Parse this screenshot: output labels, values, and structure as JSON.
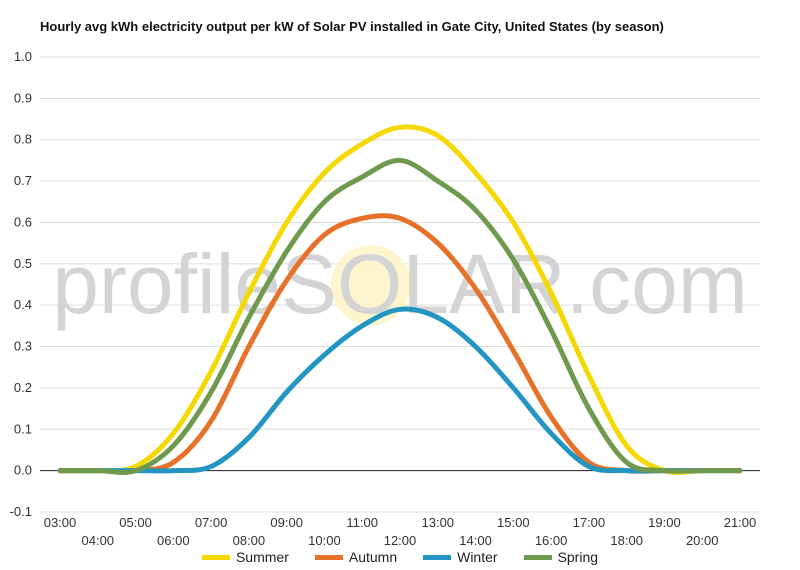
{
  "chart_data": {
    "type": "line",
    "title": "Hourly avg kWh electricity output per kW of Solar PV installed in Gate City, United States (by season)",
    "watermark": "profileSOLAR.com",
    "categories": [
      "03:00",
      "04:00",
      "05:00",
      "06:00",
      "07:00",
      "08:00",
      "09:00",
      "10:00",
      "11:00",
      "12:00",
      "13:00",
      "14:00",
      "15:00",
      "16:00",
      "17:00",
      "18:00",
      "19:00",
      "20:00",
      "21:00"
    ],
    "ylim": [
      -0.1,
      1.0
    ],
    "yticks": [
      "1.0",
      "0.9",
      "0.8",
      "0.7",
      "0.6",
      "0.5",
      "0.4",
      "0.3",
      "0.2",
      "0.1",
      "0.0",
      "-0.1"
    ],
    "grid": true,
    "legend_position": "bottom",
    "series": [
      {
        "name": "Summer",
        "color": "#f5d800",
        "values": [
          0,
          0,
          0.01,
          0.09,
          0.24,
          0.43,
          0.6,
          0.72,
          0.79,
          0.83,
          0.81,
          0.72,
          0.6,
          0.43,
          0.23,
          0.06,
          0.0,
          0,
          0
        ]
      },
      {
        "name": "Autumn",
        "color": "#e8712a",
        "values": [
          0,
          0,
          0,
          0.02,
          0.12,
          0.3,
          0.46,
          0.57,
          0.61,
          0.61,
          0.55,
          0.44,
          0.29,
          0.13,
          0.02,
          0,
          0,
          0,
          0
        ]
      },
      {
        "name": "Winter",
        "color": "#2295c2",
        "values": [
          0,
          0,
          0,
          0,
          0.01,
          0.08,
          0.19,
          0.28,
          0.35,
          0.39,
          0.37,
          0.3,
          0.2,
          0.09,
          0.01,
          0,
          0,
          0,
          0
        ]
      },
      {
        "name": "Spring",
        "color": "#6f9a4e",
        "values": [
          0,
          0,
          0,
          0.06,
          0.19,
          0.37,
          0.53,
          0.65,
          0.71,
          0.75,
          0.7,
          0.63,
          0.51,
          0.34,
          0.15,
          0.02,
          0,
          0,
          0
        ]
      }
    ]
  }
}
